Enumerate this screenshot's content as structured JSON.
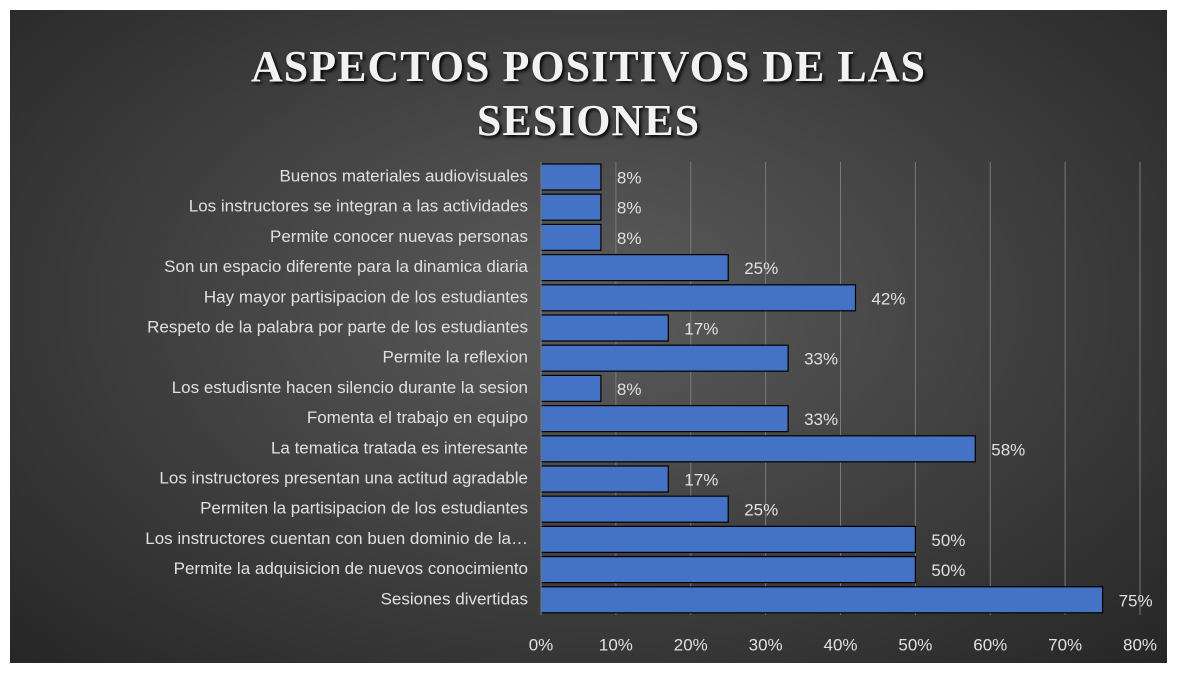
{
  "chart_data": {
    "type": "bar",
    "orientation": "horizontal",
    "title": "ASPECTOS POSITIVOS DE LAS SESIONES",
    "categories": [
      "Buenos materiales audiovisuales",
      "Los instructores se integran a las actividades",
      "Permite conocer nuevas personas",
      "Son un espacio diferente para la dinamica diaria",
      "Hay mayor partisipacion de los estudiantes",
      "Respeto de la palabra por parte de los estudiantes",
      "Permite la reflexion",
      "Los estudisnte hacen silencio durante la sesion",
      "Fomenta el trabajo en equipo",
      "La tematica tratada es interesante",
      "Los instructores presentan una actitud agradable",
      "Permiten la partisipacion de los estudiantes",
      "Los instructores cuentan con buen dominio de la…",
      "Permite la adquisicion de nuevos conocimiento",
      "Sesiones divertidas"
    ],
    "values": [
      8,
      8,
      8,
      25,
      42,
      17,
      33,
      8,
      33,
      58,
      17,
      25,
      50,
      50,
      75
    ],
    "value_labels": [
      "8%",
      "8%",
      "8%",
      "25%",
      "42%",
      "17%",
      "33%",
      "8%",
      "33%",
      "58%",
      "17%",
      "25%",
      "50%",
      "50%",
      "75%"
    ],
    "color": "#4472c4",
    "xlim": [
      0,
      80
    ],
    "xticks": [
      {
        "value": 0,
        "label": "0%"
      },
      {
        "value": 10,
        "label": "10%"
      },
      {
        "value": 20,
        "label": "20%"
      },
      {
        "value": 30,
        "label": "30%"
      },
      {
        "value": 40,
        "label": "40%"
      },
      {
        "value": 50,
        "label": "50%"
      },
      {
        "value": 60,
        "label": "60%"
      },
      {
        "value": 70,
        "label": "70%"
      },
      {
        "value": 80,
        "label": "80%"
      }
    ],
    "grid": true
  }
}
